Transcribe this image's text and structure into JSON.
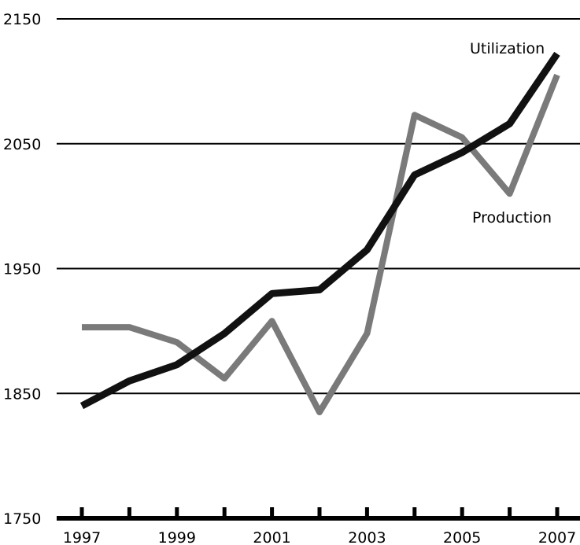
{
  "chart_data": {
    "type": "line",
    "title": "",
    "xlabel": "",
    "ylabel": "",
    "x": [
      1997,
      1998,
      1999,
      2000,
      2001,
      2002,
      2003,
      2004,
      2005,
      2006,
      2007
    ],
    "x_tick_labels": [
      "1997",
      "1999",
      "2001",
      "2003",
      "2005",
      "2007"
    ],
    "y_tick_labels": [
      "2150",
      "2050",
      "1950",
      "1850",
      "1750"
    ],
    "ylim": [
      1750,
      2150
    ],
    "grid": true,
    "legend": "inline labels",
    "series": [
      {
        "name": "Utilization",
        "color": "#111111",
        "values": [
          1840,
          1860,
          1873,
          1898,
          1930,
          1933,
          1965,
          2025,
          2043,
          2066,
          2122
        ]
      },
      {
        "name": "Production",
        "color": "#7a7a7a",
        "values": [
          1903,
          1903,
          1891,
          1862,
          1908,
          1835,
          1898,
          2073,
          2055,
          2010,
          2105
        ]
      }
    ]
  }
}
